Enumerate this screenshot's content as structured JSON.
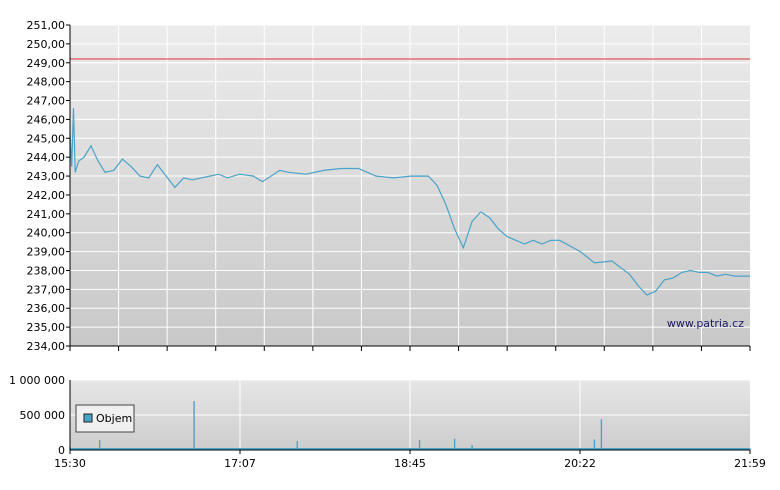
{
  "colors": {
    "price_line": "#4aa3c8",
    "reference_line": "#e03030",
    "volume_bar": "#4aa3c8",
    "grid": "#ffffff",
    "axis": "#000000"
  },
  "watermark": "www.patria.cz",
  "chart_data": [
    {
      "type": "line",
      "title": "",
      "xlabel": "",
      "ylabel": "",
      "ylim": [
        234.0,
        251.0
      ],
      "y_ticks": [
        "234,00",
        "235,00",
        "236,00",
        "237,00",
        "238,00",
        "239,00",
        "240,00",
        "241,00",
        "242,00",
        "243,00",
        "244,00",
        "245,00",
        "246,00",
        "247,00",
        "248,00",
        "249,00",
        "250,00",
        "251,00"
      ],
      "reference_line": {
        "y": 249.2
      },
      "x_range": [
        "15:30",
        "21:59"
      ],
      "series": [
        {
          "x": [
            "15:30",
            "15:31",
            "15:32",
            "15:33",
            "15:35",
            "15:38",
            "15:42",
            "15:46",
            "15:50",
            "15:55",
            "16:00",
            "16:05",
            "16:10",
            "16:15",
            "16:20",
            "16:25",
            "16:30",
            "16:35",
            "16:40",
            "16:45",
            "16:50",
            "16:55",
            "17:00",
            "17:07",
            "17:15",
            "17:20",
            "17:30",
            "17:35",
            "17:45",
            "17:55",
            "18:05",
            "18:15",
            "18:25",
            "18:35",
            "18:45",
            "18:55",
            "19:00",
            "19:05",
            "19:10",
            "19:15",
            "19:20",
            "19:25",
            "19:30",
            "19:35",
            "19:40",
            "19:50",
            "19:55",
            "20:00",
            "20:05",
            "20:10",
            "20:22",
            "20:30",
            "20:40",
            "20:50",
            "20:55",
            "21:00",
            "21:05",
            "21:10",
            "21:15",
            "21:20",
            "21:25",
            "21:30",
            "21:35",
            "21:40",
            "21:45",
            "21:50",
            "21:59"
          ],
          "values": [
            245.3,
            243.5,
            246.6,
            243.2,
            243.8,
            244.0,
            244.6,
            243.8,
            243.2,
            243.3,
            243.9,
            243.5,
            243.0,
            242.9,
            243.6,
            243.0,
            242.4,
            242.9,
            242.8,
            242.9,
            243.0,
            243.1,
            242.9,
            243.1,
            243.0,
            242.7,
            243.3,
            243.2,
            243.1,
            243.3,
            243.4,
            243.4,
            243.0,
            242.9,
            243.0,
            243.0,
            242.5,
            241.5,
            240.2,
            239.2,
            240.6,
            241.1,
            240.8,
            240.2,
            239.8,
            239.4,
            239.6,
            239.4,
            239.6,
            239.6,
            239.0,
            238.4,
            238.5,
            237.8,
            237.2,
            236.7,
            236.9,
            237.5,
            237.6,
            237.9,
            238.0,
            237.9,
            237.9,
            237.7,
            237.8,
            237.7,
            237.7
          ]
        }
      ]
    },
    {
      "type": "bar",
      "title": "",
      "xlabel": "",
      "ylabel": "",
      "ylim": [
        0,
        1000000
      ],
      "y_ticks": [
        "0",
        "500 000",
        "1 000 000"
      ],
      "x_ticks": [
        "15:30",
        "17:07",
        "18:45",
        "20:22",
        "21:59"
      ],
      "legend": {
        "position": "left",
        "entries": [
          "Objem"
        ]
      },
      "series": [
        {
          "name": "Objem",
          "x": [
            "15:30",
            "15:40",
            "15:47",
            "15:55",
            "16:05",
            "16:15",
            "16:25",
            "16:35",
            "16:41",
            "16:50",
            "17:00",
            "17:10",
            "17:20",
            "17:30",
            "17:40",
            "17:50",
            "18:00",
            "18:10",
            "18:20",
            "18:30",
            "18:40",
            "18:50",
            "19:00",
            "19:10",
            "19:13",
            "19:20",
            "19:30",
            "19:40",
            "19:50",
            "20:00",
            "20:10",
            "20:20",
            "20:30",
            "20:34",
            "20:40",
            "20:50",
            "21:00",
            "21:10",
            "21:20",
            "21:30",
            "21:40",
            "21:50",
            "21:59"
          ],
          "values": [
            45000,
            20000,
            140000,
            25000,
            18000,
            22000,
            30000,
            15000,
            700000,
            20000,
            25000,
            18000,
            22000,
            15000,
            130000,
            18000,
            20000,
            25000,
            22000,
            18000,
            15000,
            140000,
            25000,
            160000,
            30000,
            70000,
            20000,
            18000,
            25000,
            22000,
            20000,
            18000,
            150000,
            440000,
            20000,
            25000,
            18000,
            22000,
            20000,
            15000,
            18000,
            20000,
            25000
          ]
        }
      ]
    }
  ]
}
